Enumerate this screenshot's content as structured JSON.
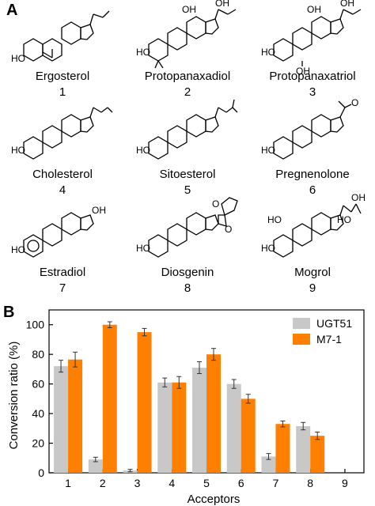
{
  "panel_a": {
    "letter": "A",
    "compounds": [
      {
        "name": "Ergosterol",
        "number": "1"
      },
      {
        "name": "Protopanaxadiol",
        "number": "2"
      },
      {
        "name": "Protopanaxatriol",
        "number": "3"
      },
      {
        "name": "Cholesterol",
        "number": "4"
      },
      {
        "name": "Sitoesterol",
        "number": "5"
      },
      {
        "name": "Pregnenolone",
        "number": "6"
      },
      {
        "name": "Estradiol",
        "number": "7"
      },
      {
        "name": "Diosgenin",
        "number": "8"
      },
      {
        "name": "Mogrol",
        "number": "9"
      }
    ],
    "atom_labels": {
      "ho": "HO",
      "oh": "OH",
      "o": "O"
    }
  },
  "panel_b": {
    "letter": "B"
  },
  "chart_data": {
    "type": "bar",
    "categories": [
      "1",
      "2",
      "3",
      "4",
      "5",
      "6",
      "7",
      "8",
      "9"
    ],
    "series": [
      {
        "name": "UGT51",
        "color": "#c8c8c8",
        "values": [
          72,
          9,
          1.5,
          61,
          71,
          60,
          11,
          31.5,
          0
        ],
        "errors": [
          4,
          1.5,
          0.8,
          3,
          4,
          3,
          2,
          2.5,
          0
        ]
      },
      {
        "name": "M7-1",
        "color": "#ff8000",
        "values": [
          76.5,
          100,
          95,
          61,
          80,
          50,
          33,
          25,
          0
        ],
        "errors": [
          5,
          2,
          2.5,
          4,
          4,
          3,
          2,
          2.5,
          0
        ]
      }
    ],
    "xlabel": "Acceptors",
    "ylabel": "Conversion ratio (%)",
    "ylim": [
      0,
      110
    ],
    "yticks": [
      "0",
      "20",
      "40",
      "60",
      "80",
      "100"
    ],
    "legend_position": "top-right",
    "grid": false
  }
}
